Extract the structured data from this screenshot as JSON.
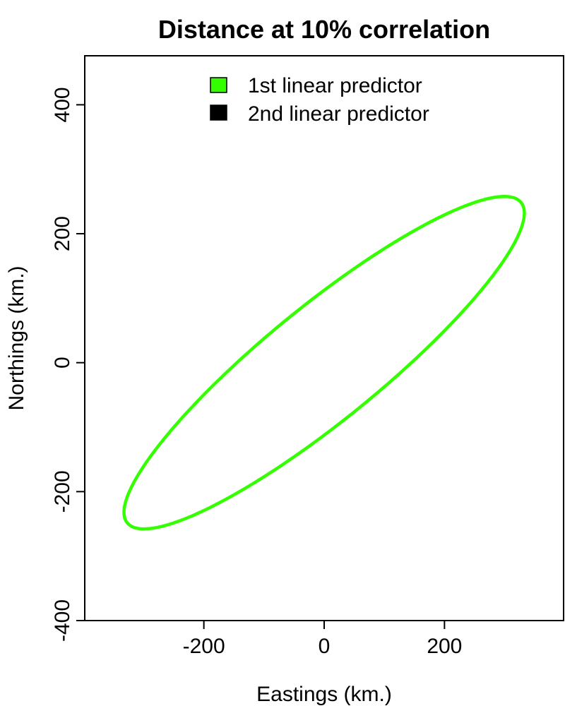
{
  "chart_data": {
    "type": "line",
    "title": "Distance at 10% correlation",
    "xlabel": "Eastings (km.)",
    "ylabel": "Northings (km.)",
    "xlim": [
      -398,
      398
    ],
    "ylim": [
      -400,
      476
    ],
    "xticks": [
      -200,
      0,
      200
    ],
    "xtick_labels": [
      "-200",
      "0",
      "200"
    ],
    "yticks": [
      -400,
      -200,
      0,
      200,
      400
    ],
    "ytick_labels": [
      "-400",
      "-200",
      "0",
      "200",
      "400"
    ],
    "grid": false,
    "legend_position": "top",
    "legend": [
      {
        "label": "1st linear predictor",
        "color": "#33ff00"
      },
      {
        "label": "2nd linear predictor",
        "color": "#000000"
      }
    ],
    "series": [
      {
        "name": "1st linear predictor",
        "color": "#33ff00",
        "shape": "ellipse",
        "center": [
          0,
          0
        ],
        "semi_major": 411,
        "semi_minor": 91,
        "angle_deg": 37
      }
    ]
  }
}
